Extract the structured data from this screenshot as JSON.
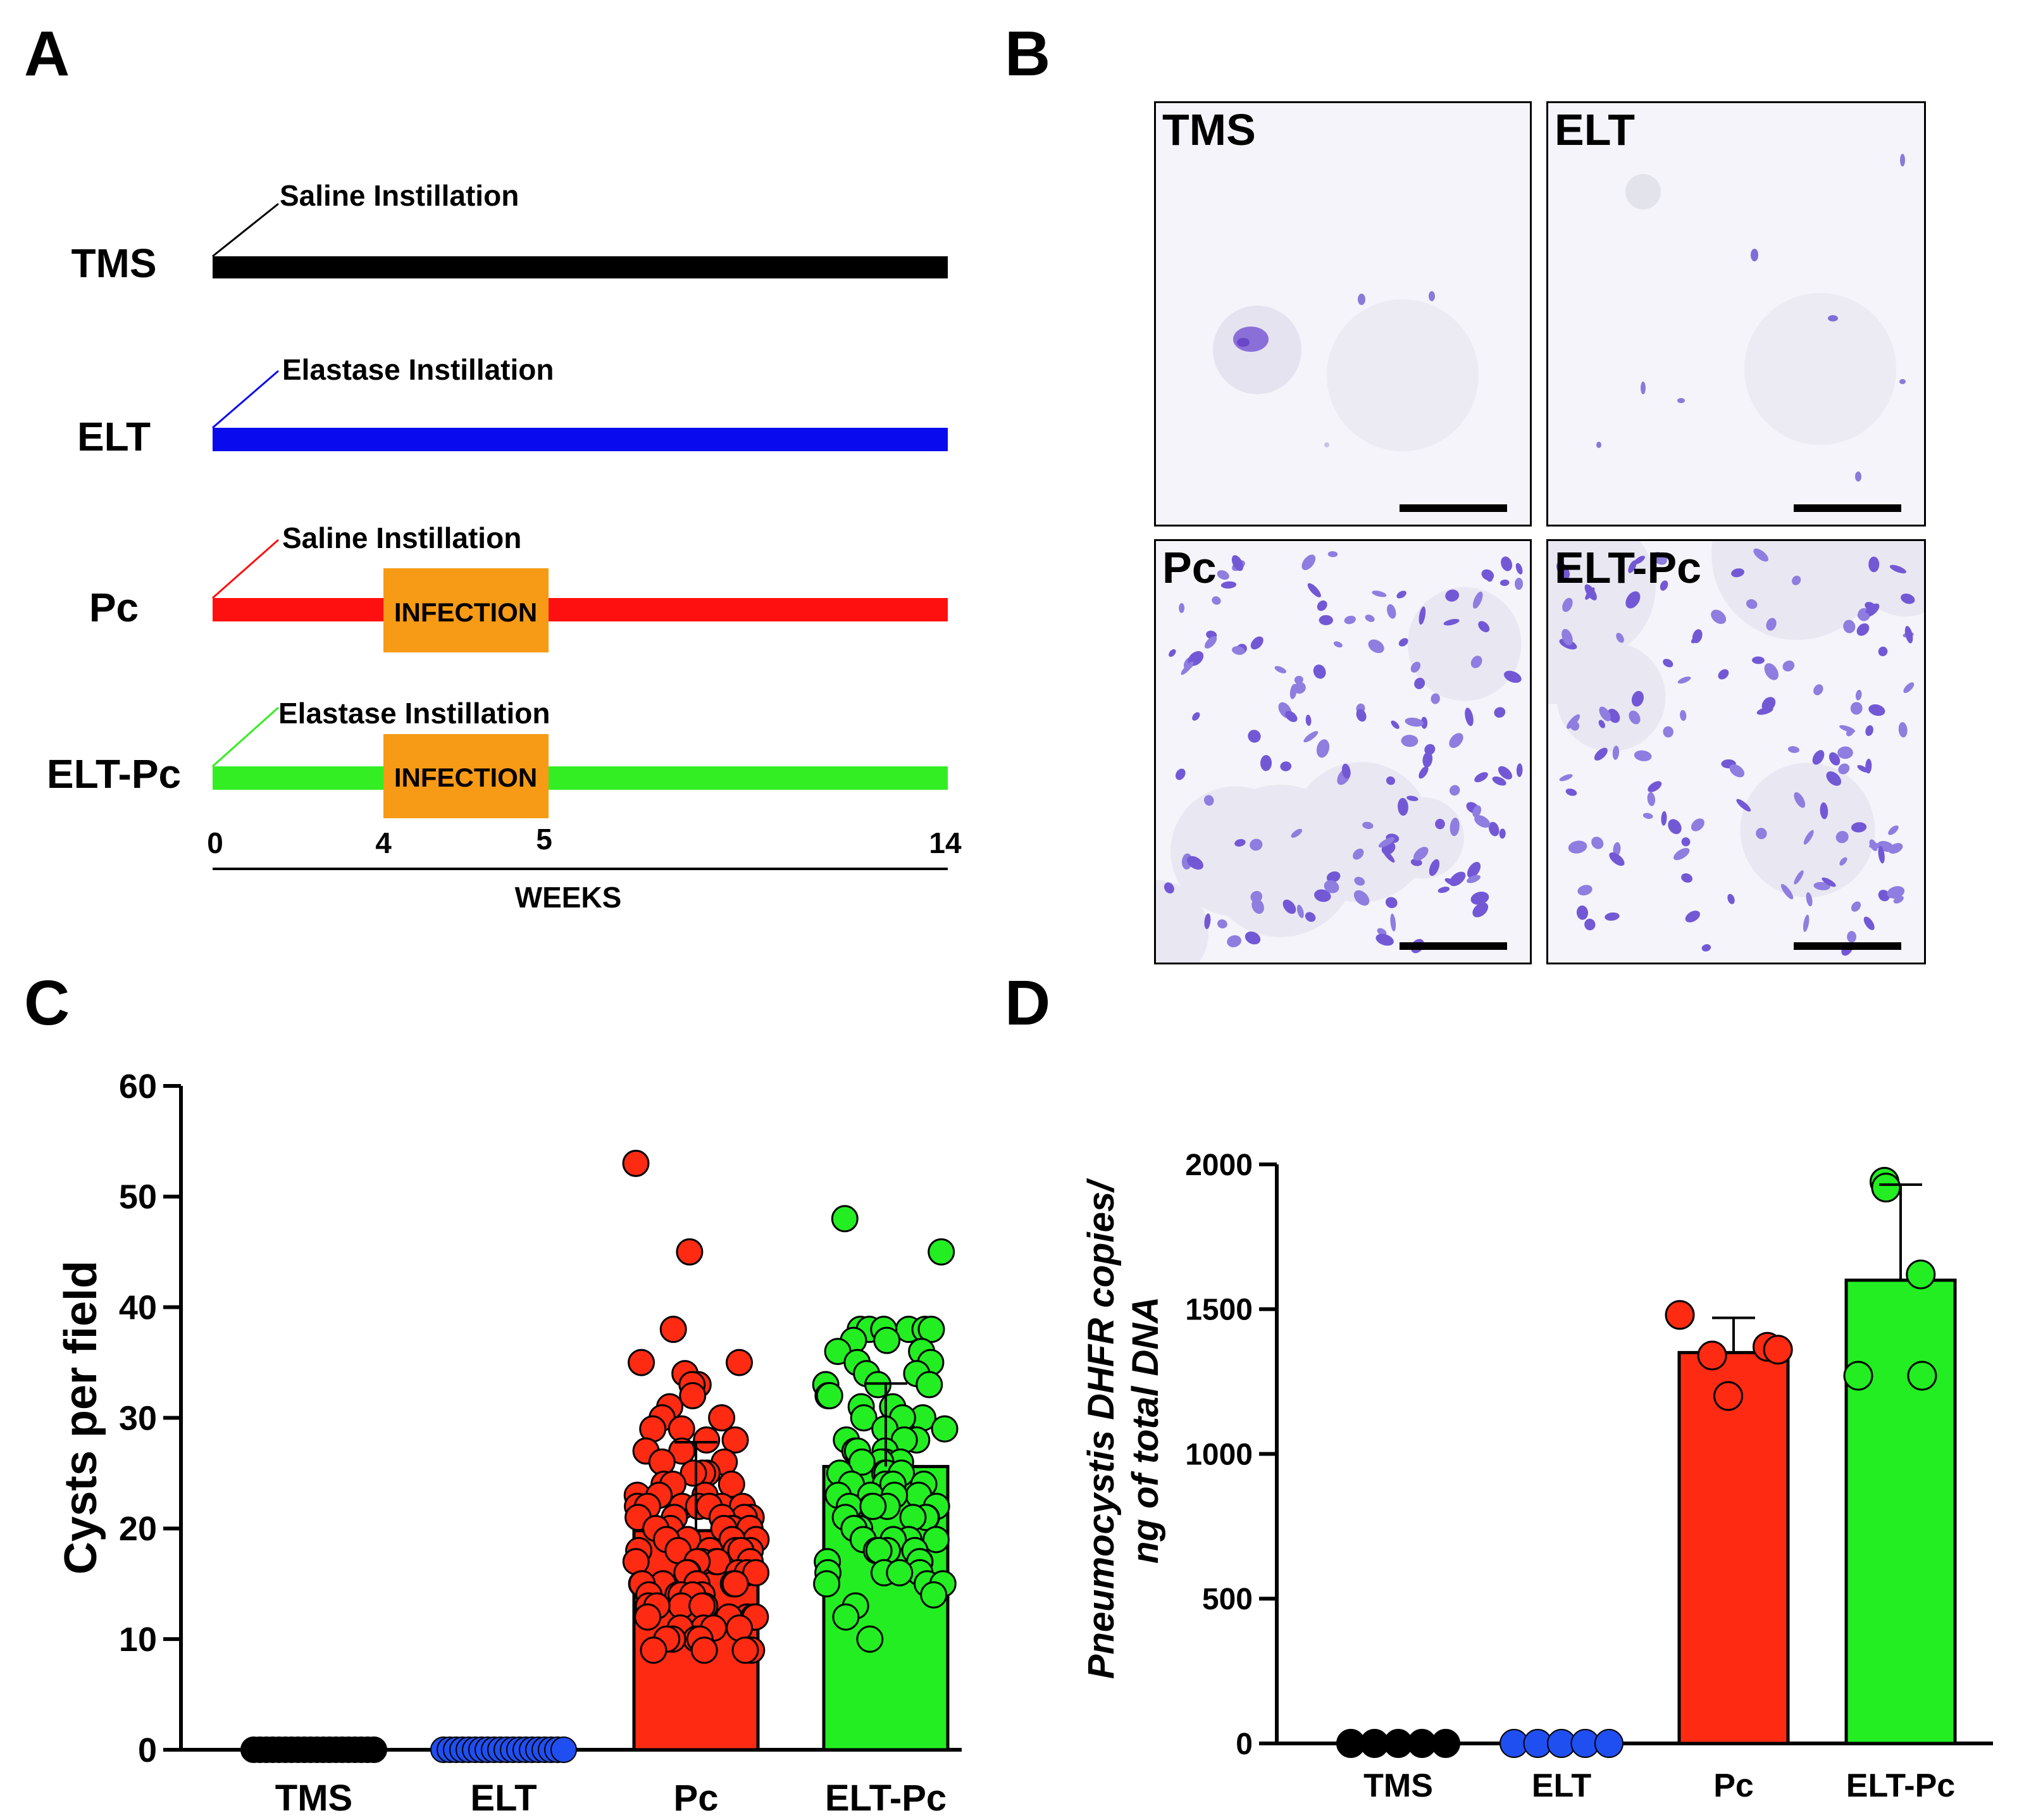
{
  "panels": {
    "a": "A",
    "b": "B",
    "c": "C",
    "d": "D"
  },
  "timeline": {
    "groups": [
      {
        "label": "TMS",
        "instillation": "Saline Instillation",
        "color": "#000000",
        "infection": false
      },
      {
        "label": "ELT",
        "instillation": "Elastase Instillation",
        "color": "#0a0aee",
        "infection": false
      },
      {
        "label": "Pc",
        "instillation": "Saline Instillation",
        "color": "#ff1010",
        "infection": true
      },
      {
        "label": "ELT-Pc",
        "instillation": "Elastase Instillation",
        "color": "#33ee22",
        "infection": true
      }
    ],
    "infection_label": "INFECTION",
    "infection_color": "#f79b16",
    "infection_weeks": [
      4,
      5
    ],
    "total_weeks": 14,
    "ticks": [
      "0",
      "4",
      "5",
      "14"
    ],
    "axis_label": "WEEKS"
  },
  "micrographs": [
    {
      "label": "TMS",
      "density": "very-low"
    },
    {
      "label": "ELT",
      "density": "low"
    },
    {
      "label": "Pc",
      "density": "high"
    },
    {
      "label": "ELT-Pc",
      "density": "high"
    }
  ],
  "chart_data": [
    {
      "panel": "C",
      "type": "bar",
      "ylabel": "Cysts per field",
      "xlabel": "",
      "ylim": [
        0,
        60
      ],
      "yticks": [
        "0",
        "10",
        "20",
        "30",
        "40",
        "50",
        "60"
      ],
      "categories": [
        "TMS",
        "ELT",
        "Pc",
        "ELT-Pc"
      ],
      "colors": [
        "#000000",
        "#1f4ff0",
        "#ff2a12",
        "#22ee22"
      ],
      "values": [
        0,
        0,
        19.8,
        25.6
      ],
      "error_sd": [
        0,
        0,
        8,
        7.5
      ],
      "points": [
        [
          0,
          0,
          0,
          0,
          0,
          0,
          0,
          0,
          0,
          0,
          0,
          0,
          0,
          0,
          0,
          0,
          0,
          0,
          0,
          0
        ],
        [
          0,
          0,
          0,
          0,
          0,
          0,
          0,
          0,
          0,
          0,
          0,
          0,
          0,
          0,
          0,
          0,
          0,
          0,
          0,
          0
        ],
        [
          53,
          45,
          38,
          35,
          35,
          34,
          33,
          33,
          32,
          31,
          30,
          30,
          29,
          29,
          28,
          28,
          27,
          27,
          26,
          26,
          25,
          25,
          25,
          24,
          24,
          24,
          23,
          23,
          23,
          22,
          22,
          22,
          22,
          22,
          22,
          22,
          21,
          21,
          21,
          21,
          21,
          20,
          20,
          20,
          20,
          20,
          20,
          20,
          19,
          19,
          19,
          19,
          18,
          18,
          18,
          18,
          18,
          18,
          17,
          17,
          17,
          17,
          17,
          17,
          16,
          16,
          16,
          16,
          16,
          15,
          15,
          15,
          15,
          15,
          15,
          14,
          14,
          14,
          14,
          14,
          13,
          13,
          13,
          13,
          13,
          12,
          12,
          12,
          12,
          12,
          11,
          11,
          11,
          11,
          10,
          10,
          10,
          10,
          9,
          9,
          9,
          9
        ],
        [
          48,
          45,
          38,
          38,
          38,
          38,
          38,
          38,
          37,
          37,
          36,
          36,
          35,
          35,
          34,
          34,
          33,
          33,
          33,
          32,
          32,
          31,
          31,
          30,
          30,
          30,
          29,
          29,
          28,
          28,
          28,
          27,
          27,
          27,
          26,
          26,
          26,
          26,
          25,
          25,
          25,
          25,
          24,
          24,
          24,
          24,
          23,
          23,
          23,
          23,
          22,
          22,
          22,
          22,
          22,
          21,
          21,
          21,
          21,
          20,
          20,
          20,
          19,
          19,
          19,
          19,
          18,
          18,
          18,
          18,
          17,
          17,
          17,
          16,
          16,
          16,
          16,
          15,
          15,
          15,
          14,
          13,
          12,
          10
        ]
      ]
    },
    {
      "panel": "D",
      "type": "bar",
      "ylabel_line1": "Pneumocystis DHFR copies/",
      "ylabel_line2": "ng of total DNA",
      "xlabel": "",
      "ylim": [
        0,
        2000
      ],
      "yticks": [
        "0",
        "500",
        "1000",
        "1500",
        "2000"
      ],
      "categories": [
        "TMS",
        "ELT",
        "Pc",
        "ELT-Pc"
      ],
      "colors": [
        "#000000",
        "#1f4ff0",
        "#ff2a12",
        "#22ee22"
      ],
      "values": [
        0,
        0,
        1350,
        1600
      ],
      "error_sd": [
        0,
        0,
        120,
        330
      ],
      "points": [
        [
          0,
          0,
          0,
          0,
          0
        ],
        [
          0,
          0,
          0,
          0,
          0
        ],
        [
          1480,
          1370,
          1360,
          1340,
          1200
        ],
        [
          1940,
          1920,
          1620,
          1270,
          1270
        ]
      ]
    }
  ]
}
